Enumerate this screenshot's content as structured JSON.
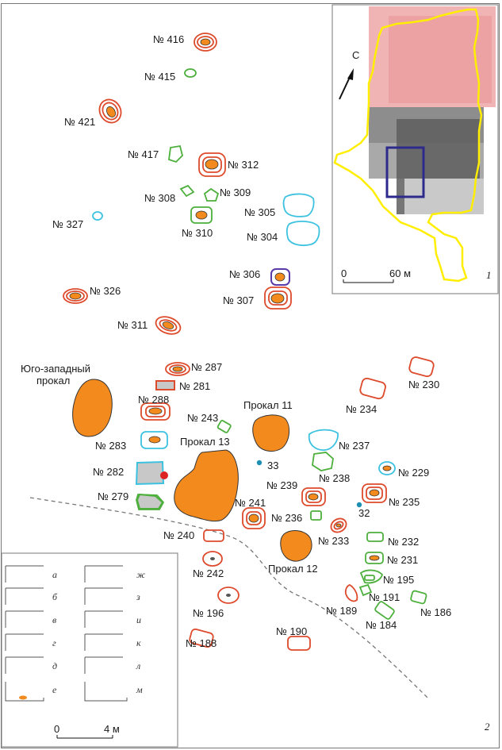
{
  "colors": {
    "red": "#dd4a2c",
    "green": "#4daf3c",
    "cyan": "#3cc2e0",
    "purple": "#5a39a8",
    "orange": "#f28a1e",
    "gray": "#c8c8c8",
    "yellow": "#ffee00",
    "navy": "#2d2a8c"
  },
  "pits": {
    "416": "№ 416",
    "415": "№ 415",
    "421": "№ 421",
    "417": "№ 417",
    "312": "№ 312",
    "308": "№ 308",
    "309": "№ 309",
    "327": "№ 327",
    "310": "№ 310",
    "305": "№ 305",
    "304": "№ 304",
    "306": "№ 306",
    "326": "№ 326",
    "307": "№ 307",
    "311": "№ 311",
    "287": "№ 287",
    "281": "№ 281",
    "288": "№ 288",
    "230": "№ 230",
    "234": "№ 234",
    "243": "№ 243",
    "283": "№ 283",
    "237": "№ 237",
    "282": "№ 282",
    "238": "№ 238",
    "229": "№ 229",
    "279": "№ 279",
    "239": "№ 239",
    "235": "№ 235",
    "241": "№ 241",
    "236": "№ 236",
    "240": "№ 240",
    "233": "№ 233",
    "232": "№ 232",
    "242": "№ 242",
    "231": "№ 231",
    "195": "№ 195",
    "189": "№ 189",
    "191": "№ 191",
    "186": "№ 186",
    "196": "№ 196",
    "184": "№ 184",
    "190": "№ 190",
    "188": "№ 188"
  },
  "prokaly": {
    "sw_line1": "Юго-западный",
    "sw_line2": "прокал",
    "p11": "Прокал 11",
    "p13": "Прокал 13",
    "p12": "Прокал 12"
  },
  "points": {
    "p33": "33",
    "p32": "32"
  },
  "inset": {
    "north": "С",
    "scale_zero": "0",
    "scale_label": "60 м",
    "panel_number": "1"
  },
  "main": {
    "scale_zero": "0",
    "scale_label": "4 м",
    "panel_number": "2"
  },
  "legend": {
    "left": [
      "а",
      "б",
      "в",
      "г",
      "д",
      "е"
    ],
    "right": [
      "ж",
      "з",
      "и",
      "к",
      "л",
      "м"
    ]
  }
}
